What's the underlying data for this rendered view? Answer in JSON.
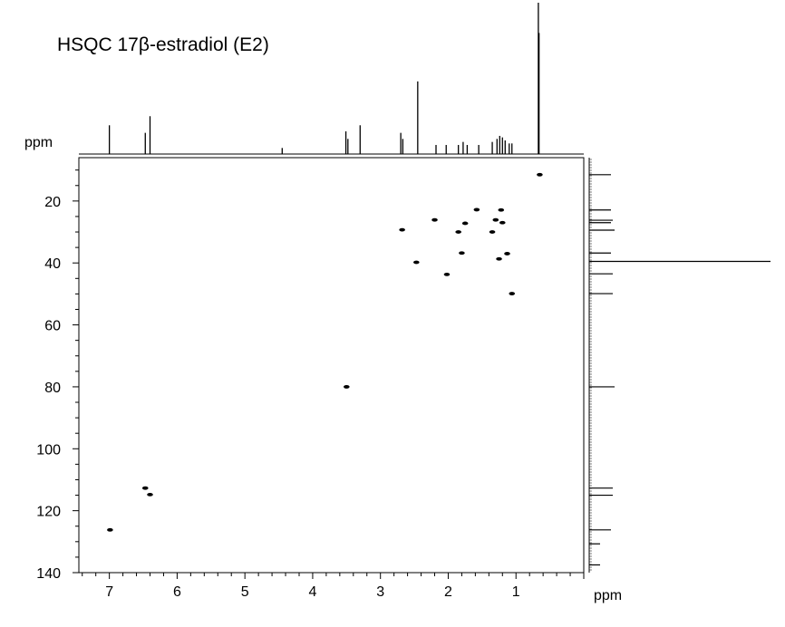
{
  "chart_data": {
    "type": "scatter",
    "title": "HSQC 17β-estradiol (E2)",
    "xlabel": "ppm",
    "ylabel": "ppm",
    "x_axis": {
      "min": 0,
      "max": 7.45,
      "reversed": true,
      "major_ticks": [
        1,
        2,
        3,
        4,
        5,
        6,
        7
      ],
      "minor_step": 0.2
    },
    "y_axis": {
      "min": 6,
      "max": 140,
      "reversed": true,
      "major_ticks": [
        20,
        40,
        60,
        80,
        100,
        120,
        140
      ],
      "minor_step": 5
    },
    "grid": false,
    "cross_peaks": [
      {
        "x": 0.65,
        "y": 11.5
      },
      {
        "x": 1.58,
        "y": 22.8
      },
      {
        "x": 1.22,
        "y": 22.9
      },
      {
        "x": 2.2,
        "y": 26.1
      },
      {
        "x": 1.3,
        "y": 26.1
      },
      {
        "x": 1.2,
        "y": 27.0
      },
      {
        "x": 1.75,
        "y": 27.2
      },
      {
        "x": 2.68,
        "y": 29.3
      },
      {
        "x": 1.85,
        "y": 30.0
      },
      {
        "x": 1.35,
        "y": 30.0
      },
      {
        "x": 1.8,
        "y": 36.8
      },
      {
        "x": 1.13,
        "y": 37.0
      },
      {
        "x": 1.25,
        "y": 38.7
      },
      {
        "x": 2.47,
        "y": 39.8
      },
      {
        "x": 2.02,
        "y": 43.7
      },
      {
        "x": 1.06,
        "y": 49.9
      },
      {
        "x": 3.5,
        "y": 80.0
      },
      {
        "x": 6.47,
        "y": 112.7
      },
      {
        "x": 6.4,
        "y": 114.8
      },
      {
        "x": 6.99,
        "y": 126.2
      }
    ],
    "proton_1d_peaks": [
      {
        "x": 7.0,
        "height": 0.19
      },
      {
        "x": 6.47,
        "height": 0.14
      },
      {
        "x": 6.4,
        "height": 0.25
      },
      {
        "x": 4.45,
        "height": 0.04
      },
      {
        "x": 3.51,
        "height": 0.15
      },
      {
        "x": 3.48,
        "height": 0.1
      },
      {
        "x": 3.3,
        "height": 0.19
      },
      {
        "x": 2.7,
        "height": 0.14
      },
      {
        "x": 2.67,
        "height": 0.1
      },
      {
        "x": 2.45,
        "height": 0.48
      },
      {
        "x": 2.18,
        "height": 0.06
      },
      {
        "x": 2.03,
        "height": 0.06
      },
      {
        "x": 1.85,
        "height": 0.06
      },
      {
        "x": 1.78,
        "height": 0.08
      },
      {
        "x": 1.72,
        "height": 0.06
      },
      {
        "x": 1.55,
        "height": 0.06
      },
      {
        "x": 1.35,
        "height": 0.08
      },
      {
        "x": 1.28,
        "height": 0.1
      },
      {
        "x": 1.24,
        "height": 0.12
      },
      {
        "x": 1.2,
        "height": 0.11
      },
      {
        "x": 1.16,
        "height": 0.09
      },
      {
        "x": 1.1,
        "height": 0.07
      },
      {
        "x": 1.06,
        "height": 0.07
      },
      {
        "x": 0.67,
        "height": 1.0
      },
      {
        "x": 0.66,
        "height": 0.8
      }
    ],
    "carbon_1d_peaks": [
      {
        "y": 11.5,
        "height": 0.12
      },
      {
        "y": 22.9,
        "height": 0.12
      },
      {
        "y": 26.2,
        "height": 0.13
      },
      {
        "y": 27.0,
        "height": 0.12
      },
      {
        "y": 29.4,
        "height": 0.14
      },
      {
        "y": 36.8,
        "height": 0.12
      },
      {
        "y": 39.5,
        "height": 1.0
      },
      {
        "y": 43.5,
        "height": 0.13
      },
      {
        "y": 49.9,
        "height": 0.13
      },
      {
        "y": 80.0,
        "height": 0.14
      },
      {
        "y": 112.7,
        "height": 0.13
      },
      {
        "y": 115.0,
        "height": 0.13
      },
      {
        "y": 126.2,
        "height": 0.12
      },
      {
        "y": 130.7,
        "height": 0.06
      },
      {
        "y": 137.5,
        "height": 0.06
      }
    ]
  }
}
